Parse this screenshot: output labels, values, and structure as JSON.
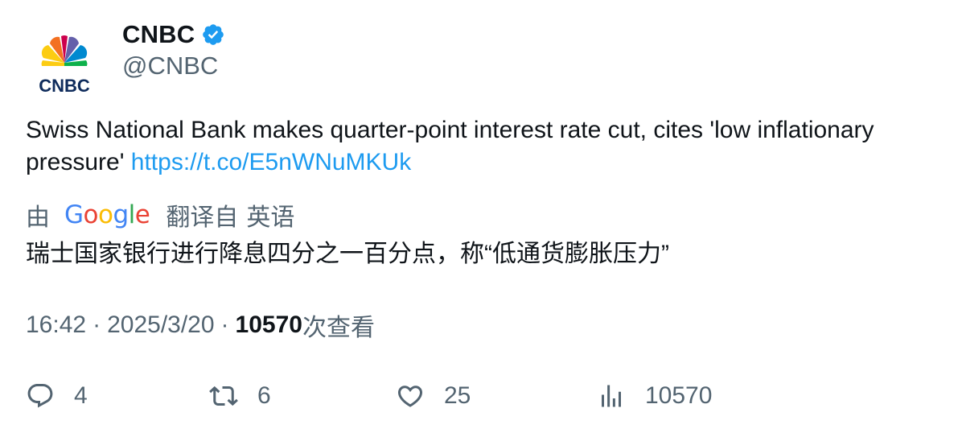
{
  "author": {
    "display_name": "CNBC",
    "handle": "@CNBC",
    "avatar_logo_text": "CNBC",
    "verified": true,
    "verified_color": "#1d9bf0"
  },
  "tweet": {
    "text": "Swiss National Bank makes quarter-point interest rate cut, cites 'low inflationary pressure' ",
    "link": "https://t.co/E5nWNuMKUk",
    "link_color": "#1d9bf0"
  },
  "translation": {
    "by_label": "由",
    "provider_logo_text": "Google",
    "translated_from_label": "翻译自",
    "source_language": "英语",
    "text": "瑞士国家银行进行降息四分之一百分点，称“低通货膨胀压力”"
  },
  "meta": {
    "time": "16:42",
    "separator": "·",
    "date": "2025/3/20",
    "views_count": "10570",
    "views_label": "次查看"
  },
  "actions": {
    "reply": {
      "icon": "reply-icon",
      "count": "4"
    },
    "retweet": {
      "icon": "retweet-icon",
      "count": "6"
    },
    "like": {
      "icon": "heart-icon",
      "count": "25"
    },
    "views": {
      "icon": "bar-chart-icon",
      "count": "10570"
    }
  },
  "colors": {
    "text_primary": "#0f1419",
    "text_secondary": "#536471",
    "accent": "#1d9bf0"
  }
}
